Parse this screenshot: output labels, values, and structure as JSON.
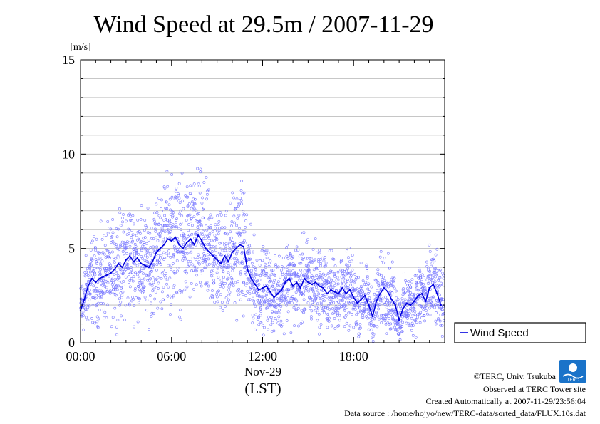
{
  "chart_data": {
    "type": "scatter",
    "title": "Wind Speed at 29.5m / 2007-11-29",
    "ylabel": "[m/s]",
    "ylim": [
      0,
      15
    ],
    "yticks": [
      0,
      5,
      10,
      15
    ],
    "xlim_hours": [
      0,
      24
    ],
    "xticks": [
      {
        "hour": 0,
        "label": "00:00"
      },
      {
        "hour": 6,
        "label": "06:00"
      },
      {
        "hour": 12,
        "label": "12:00"
      },
      {
        "hour": 18,
        "label": "18:00"
      }
    ],
    "date_label": "Nov-29",
    "xlabel": "(LST)",
    "grid": true,
    "legend_position": "right",
    "series": [
      {
        "name": "Wind Speed",
        "style": "line + scattered 10-s samples",
        "color": "#0000dd",
        "sample_color": "#7878ff",
        "x_hours": [
          0.0,
          0.25,
          0.5,
          0.75,
          1.0,
          1.25,
          1.5,
          1.75,
          2.0,
          2.25,
          2.5,
          2.75,
          3.0,
          3.25,
          3.5,
          3.75,
          4.0,
          4.25,
          4.5,
          4.75,
          5.0,
          5.25,
          5.5,
          5.75,
          6.0,
          6.25,
          6.5,
          6.75,
          7.0,
          7.25,
          7.5,
          7.75,
          8.0,
          8.25,
          8.5,
          8.75,
          9.0,
          9.25,
          9.5,
          9.75,
          10.0,
          10.25,
          10.5,
          10.75,
          11.0,
          11.25,
          11.5,
          11.75,
          12.0,
          12.25,
          12.5,
          12.75,
          13.0,
          13.25,
          13.5,
          13.75,
          14.0,
          14.25,
          14.5,
          14.75,
          15.0,
          15.25,
          15.5,
          15.75,
          16.0,
          16.25,
          16.5,
          16.75,
          17.0,
          17.25,
          17.5,
          17.75,
          18.0,
          18.25,
          18.5,
          18.75,
          19.0,
          19.25,
          19.5,
          19.75,
          20.0,
          20.25,
          20.5,
          20.75,
          21.0,
          21.25,
          21.5,
          21.75,
          22.0,
          22.25,
          22.5,
          22.75,
          23.0,
          23.25,
          23.5,
          23.75
        ],
        "values": [
          1.7,
          2.3,
          3.0,
          3.4,
          3.2,
          3.4,
          3.5,
          3.6,
          3.7,
          3.9,
          4.2,
          4.0,
          4.4,
          4.6,
          4.3,
          4.5,
          4.2,
          4.1,
          4.0,
          4.3,
          4.8,
          5.0,
          5.2,
          5.5,
          5.4,
          5.6,
          5.2,
          5.0,
          5.3,
          5.5,
          5.2,
          5.7,
          5.4,
          5.0,
          4.8,
          4.6,
          4.4,
          4.2,
          4.6,
          4.3,
          4.8,
          5.0,
          5.2,
          5.1,
          3.9,
          3.4,
          3.1,
          2.8,
          2.9,
          3.0,
          2.7,
          2.4,
          2.6,
          2.8,
          3.2,
          3.4,
          3.0,
          3.2,
          2.9,
          3.4,
          3.2,
          3.1,
          3.2,
          3.0,
          2.9,
          2.6,
          2.8,
          2.7,
          2.6,
          2.9,
          2.6,
          2.8,
          2.4,
          2.1,
          2.3,
          2.5,
          2.0,
          1.4,
          2.2,
          2.6,
          2.9,
          2.7,
          2.3,
          2.0,
          1.2,
          1.8,
          2.1,
          2.0,
          2.2,
          2.5,
          2.6,
          2.2,
          2.9,
          3.1,
          2.6,
          2.0
        ]
      }
    ]
  },
  "footer": {
    "copyright": "©TERC, Univ. Tsukuba",
    "observed": "Observed at TERC Tower site",
    "created": "Created Automatically at 2007-11-29/23:56:04",
    "source": "Data source : /home/hojyo/new/TERC-data/sorted_data/FLUX.10s.dat",
    "logo_text": "TERC"
  }
}
